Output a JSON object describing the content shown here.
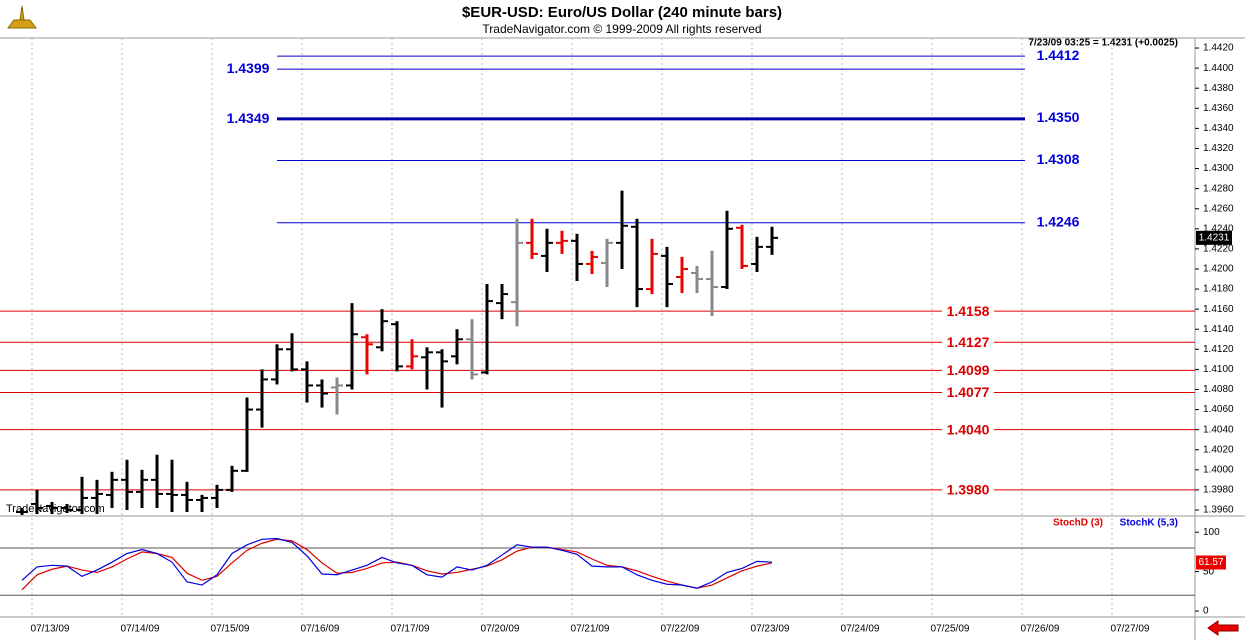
{
  "chart_data": [
    {
      "type": "ohlc",
      "title": "$EUR-USD:  Euro/US Dollar  (240 minute bars)",
      "subtitle": "TradeNavigator.com © 1999-2009 All rights reserved",
      "info": "7/23/09 03:25 = 1.4231 (+0.0025)",
      "watermark": "TradeNavigator.com",
      "categories": [
        "07/13/09",
        "07/14/09",
        "07/15/09",
        "07/16/09",
        "07/17/09",
        "07/20/09",
        "07/21/09",
        "07/22/09",
        "07/23/09",
        "07/24/09",
        "07/25/09",
        "07/26/09",
        "07/27/09"
      ],
      "ylim": [
        1.3955,
        1.443
      ],
      "yticks": [
        {
          "value": 1.396,
          "label": "1.3960"
        },
        {
          "value": 1.398,
          "label": "1.3980"
        },
        {
          "value": 1.4,
          "label": "1.4000"
        },
        {
          "value": 1.402,
          "label": "1.4020"
        },
        {
          "value": 1.404,
          "label": "1.4040"
        },
        {
          "value": 1.406,
          "label": "1.4060"
        },
        {
          "value": 1.408,
          "label": "1.4080"
        },
        {
          "value": 1.41,
          "label": "1.4100"
        },
        {
          "value": 1.412,
          "label": "1.4120"
        },
        {
          "value": 1.414,
          "label": "1.4140"
        },
        {
          "value": 1.416,
          "label": "1.4160"
        },
        {
          "value": 1.418,
          "label": "1.4180"
        },
        {
          "value": 1.42,
          "label": "1.4200"
        },
        {
          "value": 1.422,
          "label": "1.4220"
        },
        {
          "value": 1.424,
          "label": "1.4240"
        },
        {
          "value": 1.426,
          "label": "1.4260"
        },
        {
          "value": 1.428,
          "label": "1.4280"
        },
        {
          "value": 1.43,
          "label": "1.4300"
        },
        {
          "value": 1.432,
          "label": "1.4320"
        },
        {
          "value": 1.434,
          "label": "1.4340"
        },
        {
          "value": 1.436,
          "label": "1.4360"
        },
        {
          "value": 1.438,
          "label": "1.4380"
        },
        {
          "value": 1.44,
          "label": "1.4400"
        },
        {
          "value": 1.442,
          "label": "1.4420"
        }
      ],
      "last": 1.4231,
      "levels": [
        {
          "value": 1.4412,
          "label": "1.4412",
          "color": "#0000cc",
          "side": "right"
        },
        {
          "value": 1.4399,
          "label": "1.4399",
          "color": "#0000cc",
          "side": "left"
        },
        {
          "value": 1.435,
          "label": "1.4350",
          "color": "#0000aa",
          "side": "right"
        },
        {
          "value": 1.4349,
          "label": "1.4349",
          "color": "#0000aa",
          "side": "left"
        },
        {
          "value": 1.4308,
          "label": "1.4308",
          "color": "#0000cc",
          "side": "right"
        },
        {
          "value": 1.4246,
          "label": "1.4246",
          "color": "#0000cc",
          "side": "right"
        },
        {
          "value": 1.4158,
          "label": "1.4158",
          "color": "#dd0000",
          "side": "full"
        },
        {
          "value": 1.4127,
          "label": "1.4127",
          "color": "#dd0000",
          "side": "full"
        },
        {
          "value": 1.4099,
          "label": "1.4099",
          "color": "#dd0000",
          "side": "full"
        },
        {
          "value": 1.4077,
          "label": "1.4077",
          "color": "#dd0000",
          "side": "full"
        },
        {
          "value": 1.404,
          "label": "1.4040",
          "color": "#dd0000",
          "side": "full"
        },
        {
          "value": 1.398,
          "label": "1.3980",
          "color": "#dd0000",
          "side": "full"
        }
      ],
      "bars": [
        {
          "open": 1.3958,
          "high": 1.3962,
          "low": 1.3955,
          "close": 1.3958,
          "color": "#000000"
        },
        {
          "open": 1.3966,
          "high": 1.398,
          "low": 1.3956,
          "close": 1.3962,
          "color": "#000000"
        },
        {
          "open": 1.3964,
          "high": 1.3968,
          "low": 1.3956,
          "close": 1.3962,
          "color": "#000000"
        },
        {
          "open": 1.3962,
          "high": 1.3966,
          "low": 1.3957,
          "close": 1.396,
          "color": "#000000"
        },
        {
          "open": 1.396,
          "high": 1.3993,
          "low": 1.3956,
          "close": 1.3972,
          "color": "#000000"
        },
        {
          "open": 1.3972,
          "high": 1.399,
          "low": 1.3956,
          "close": 1.3976,
          "color": "#000000"
        },
        {
          "open": 1.3975,
          "high": 1.3998,
          "low": 1.3962,
          "close": 1.399,
          "color": "#000000"
        },
        {
          "open": 1.399,
          "high": 1.401,
          "low": 1.396,
          "close": 1.3978,
          "color": "#000000"
        },
        {
          "open": 1.3978,
          "high": 1.4,
          "low": 1.3962,
          "close": 1.399,
          "color": "#000000"
        },
        {
          "open": 1.399,
          "high": 1.4015,
          "low": 1.3962,
          "close": 1.3976,
          "color": "#000000"
        },
        {
          "open": 1.3976,
          "high": 1.401,
          "low": 1.3958,
          "close": 1.3975,
          "color": "#000000"
        },
        {
          "open": 1.3975,
          "high": 1.3988,
          "low": 1.3958,
          "close": 1.397,
          "color": "#000000"
        },
        {
          "open": 1.397,
          "high": 1.3975,
          "low": 1.3958,
          "close": 1.3972,
          "color": "#000000"
        },
        {
          "open": 1.3972,
          "high": 1.3985,
          "low": 1.3962,
          "close": 1.398,
          "color": "#000000"
        },
        {
          "open": 1.398,
          "high": 1.4004,
          "low": 1.3978,
          "close": 1.3999,
          "color": "#000000"
        },
        {
          "open": 1.3999,
          "high": 1.4072,
          "low": 1.3998,
          "close": 1.406,
          "color": "#000000"
        },
        {
          "open": 1.406,
          "high": 1.41,
          "low": 1.4042,
          "close": 1.409,
          "color": "#000000"
        },
        {
          "open": 1.409,
          "high": 1.4125,
          "low": 1.4085,
          "close": 1.412,
          "color": "#000000"
        },
        {
          "open": 1.412,
          "high": 1.4136,
          "low": 1.4098,
          "close": 1.41,
          "color": "#000000"
        },
        {
          "open": 1.41,
          "high": 1.4108,
          "low": 1.4067,
          "close": 1.4084,
          "color": "#000000"
        },
        {
          "open": 1.4084,
          "high": 1.409,
          "low": 1.4062,
          "close": 1.4076,
          "color": "#000000"
        },
        {
          "open": 1.4082,
          "high": 1.4092,
          "low": 1.4055,
          "close": 1.4084,
          "color": "#888888"
        },
        {
          "open": 1.4084,
          "high": 1.4166,
          "low": 1.408,
          "close": 1.4135,
          "color": "#000000"
        },
        {
          "open": 1.4132,
          "high": 1.4135,
          "low": 1.4095,
          "close": 1.4125,
          "color": "#ee0000"
        },
        {
          "open": 1.4122,
          "high": 1.416,
          "low": 1.4118,
          "close": 1.4148,
          "color": "#000000"
        },
        {
          "open": 1.4145,
          "high": 1.4148,
          "low": 1.4098,
          "close": 1.4103,
          "color": "#000000"
        },
        {
          "open": 1.4103,
          "high": 1.413,
          "low": 1.41,
          "close": 1.4113,
          "color": "#ee0000"
        },
        {
          "open": 1.4112,
          "high": 1.4122,
          "low": 1.408,
          "close": 1.4117,
          "color": "#000000"
        },
        {
          "open": 1.4117,
          "high": 1.412,
          "low": 1.4062,
          "close": 1.4108,
          "color": "#000000"
        },
        {
          "open": 1.4113,
          "high": 1.414,
          "low": 1.4105,
          "close": 1.413,
          "color": "#000000"
        },
        {
          "open": 1.413,
          "high": 1.415,
          "low": 1.409,
          "close": 1.4095,
          "color": "#888888"
        },
        {
          "open": 1.4097,
          "high": 1.4185,
          "low": 1.4095,
          "close": 1.4168,
          "color": "#000000"
        },
        {
          "open": 1.4166,
          "high": 1.4185,
          "low": 1.415,
          "close": 1.4175,
          "color": "#000000"
        },
        {
          "open": 1.4167,
          "high": 1.425,
          "low": 1.4143,
          "close": 1.4226,
          "color": "#888888"
        },
        {
          "open": 1.4226,
          "high": 1.425,
          "low": 1.421,
          "close": 1.4215,
          "color": "#ee0000"
        },
        {
          "open": 1.4213,
          "high": 1.424,
          "low": 1.4197,
          "close": 1.4226,
          "color": "#000000"
        },
        {
          "open": 1.4226,
          "high": 1.4238,
          "low": 1.4215,
          "close": 1.4228,
          "color": "#ee0000"
        },
        {
          "open": 1.4228,
          "high": 1.4235,
          "low": 1.4188,
          "close": 1.4205,
          "color": "#000000"
        },
        {
          "open": 1.4205,
          "high": 1.4218,
          "low": 1.4195,
          "close": 1.4212,
          "color": "#ee0000"
        },
        {
          "open": 1.4206,
          "high": 1.423,
          "low": 1.4182,
          "close": 1.4226,
          "color": "#888888"
        },
        {
          "open": 1.4226,
          "high": 1.4278,
          "low": 1.42,
          "close": 1.4243,
          "color": "#000000"
        },
        {
          "open": 1.4242,
          "high": 1.425,
          "low": 1.4162,
          "close": 1.418,
          "color": "#000000"
        },
        {
          "open": 1.418,
          "high": 1.423,
          "low": 1.4175,
          "close": 1.4215,
          "color": "#ee0000"
        },
        {
          "open": 1.4213,
          "high": 1.4222,
          "low": 1.4162,
          "close": 1.4185,
          "color": "#000000"
        },
        {
          "open": 1.4192,
          "high": 1.4212,
          "low": 1.4176,
          "close": 1.42,
          "color": "#ee0000"
        },
        {
          "open": 1.4196,
          "high": 1.4203,
          "low": 1.4176,
          "close": 1.419,
          "color": "#888888"
        },
        {
          "open": 1.419,
          "high": 1.4218,
          "low": 1.4153,
          "close": 1.4182,
          "color": "#888888"
        },
        {
          "open": 1.4182,
          "high": 1.4258,
          "low": 1.418,
          "close": 1.424,
          "color": "#000000"
        },
        {
          "open": 1.4241,
          "high": 1.4244,
          "low": 1.42,
          "close": 1.4203,
          "color": "#ee0000"
        },
        {
          "open": 1.4205,
          "high": 1.4232,
          "low": 1.4197,
          "close": 1.4222,
          "color": "#000000"
        },
        {
          "open": 1.4222,
          "high": 1.4242,
          "low": 1.4214,
          "close": 1.4231,
          "color": "#000000"
        }
      ]
    },
    {
      "type": "line",
      "ylim": [
        -5,
        118
      ],
      "yticks": [
        0,
        50,
        100
      ],
      "bands": [
        20,
        80
      ],
      "last": 61.57,
      "series": [
        {
          "name": "StochD (3)",
          "color": "#dd0000",
          "values": [
            27,
            46,
            53,
            57,
            52,
            49,
            56,
            66,
            75,
            73,
            68,
            48,
            39,
            44,
            61,
            77,
            86,
            91,
            89,
            78,
            61,
            48,
            49,
            54,
            61,
            62,
            58,
            51,
            47,
            49,
            53,
            57,
            65,
            76,
            81,
            81,
            78,
            75,
            66,
            58,
            56,
            51,
            44,
            38,
            33,
            29,
            33,
            42,
            51,
            57,
            61
          ]
        },
        {
          "name": "StochK (5,3)",
          "color": "#0000dd",
          "values": [
            39,
            56,
            58,
            57,
            44,
            52,
            62,
            73,
            78,
            73,
            62,
            37,
            33,
            46,
            73,
            84,
            91,
            92,
            87,
            70,
            47,
            46,
            52,
            58,
            68,
            61,
            58,
            46,
            43,
            56,
            52,
            58,
            71,
            84,
            81,
            81,
            77,
            72,
            57,
            56,
            56,
            46,
            39,
            34,
            33,
            29,
            37,
            49,
            54,
            63,
            62
          ]
        }
      ]
    }
  ]
}
